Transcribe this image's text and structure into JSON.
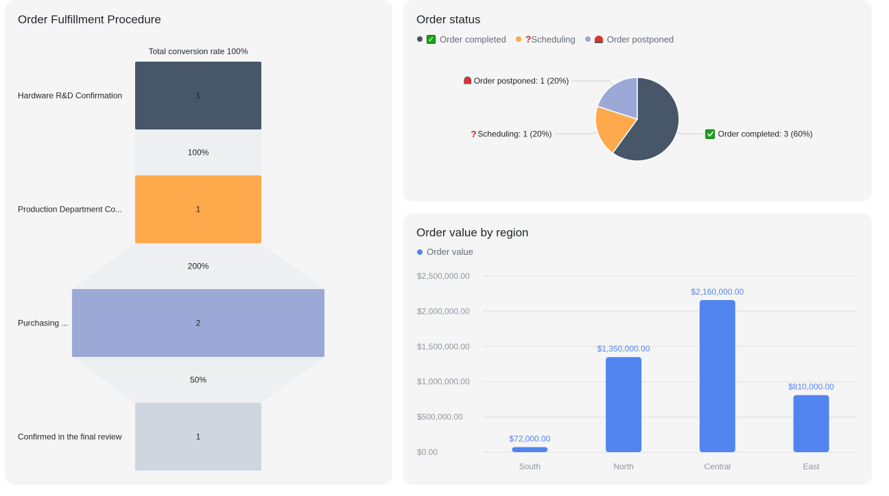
{
  "funnel": {
    "title": "Order Fulfillment Procedure",
    "total_label": "Total conversion rate 100%",
    "chart_data": {
      "type": "funnel",
      "stages": [
        {
          "name": "Hardware R&D Confirmation",
          "label": "Hardware R&D Confirmation",
          "value": 1,
          "color": "#475669"
        },
        {
          "name": "Production Department Confirmation",
          "label": "Production Department Co...",
          "value": 1,
          "color": "#ffa94d"
        },
        {
          "name": "Purchasing Department Confirmation",
          "label": "Purchasing ...",
          "value": 2,
          "color": "#9ca9d6"
        },
        {
          "name": "Confirmed in the final review",
          "label": "Confirmed in the final review",
          "value": 1,
          "color": "#cfd6e0"
        }
      ],
      "conversion_rates": [
        "100%",
        "200%",
        "50%"
      ]
    }
  },
  "pie": {
    "title": "Order status",
    "chart_data": {
      "type": "pie",
      "slices": [
        {
          "name": "Order completed",
          "value": 3,
          "percent": "60%",
          "color": "#475669",
          "icon": "check-box-icon",
          "label": "Order completed: 3 (60%)"
        },
        {
          "name": "Scheduling",
          "value": 1,
          "percent": "20%",
          "color": "#ffa94d",
          "icon": "question-mark-icon",
          "label": "Scheduling: 1 (20%)"
        },
        {
          "name": "Order postponed",
          "value": 1,
          "percent": "20%",
          "color": "#9ca9d6",
          "icon": "siren-icon",
          "label": "Order postponed: 1 (20%)"
        }
      ]
    }
  },
  "bar": {
    "title": "Order value by region",
    "chart_data": {
      "type": "bar",
      "legend": "Order value",
      "color": "#5284f0",
      "categories": [
        "South",
        "North",
        "Central",
        "East"
      ],
      "values": [
        72000,
        1350000,
        2160000,
        810000
      ],
      "value_labels": [
        "$72,000.00",
        "$1,350,000.00",
        "$2,160,000.00",
        "$810,000.00"
      ],
      "ylim": [
        0,
        2500000
      ],
      "yticks": [
        0,
        500000,
        1000000,
        1500000,
        2000000,
        2500000
      ],
      "ytick_labels": [
        "$0.00",
        "$500,000.00",
        "$1,000,000.00",
        "$1,500,000.00",
        "$2,000,000.00",
        "$2,500,000.00"
      ]
    }
  }
}
